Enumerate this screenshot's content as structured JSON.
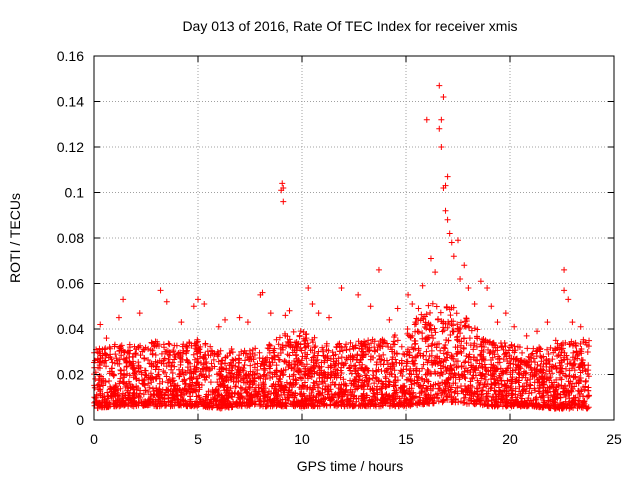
{
  "chart_data": {
    "type": "scatter",
    "title": "Day 013 of 2016, Rate Of TEC Index for receiver xmis",
    "xlabel": "GPS time / hours",
    "ylabel": "ROTI / TECUs",
    "xlim": [
      0,
      25
    ],
    "ylim": [
      0,
      0.16
    ],
    "x_ticks": [
      "0",
      "5",
      "10",
      "15",
      "20",
      "25"
    ],
    "y_ticks": [
      "0",
      "0.02",
      "0.04",
      "0.06",
      "0.08",
      "0.1",
      "0.12",
      "0.14",
      "0.16"
    ],
    "grid": true,
    "legend": "none",
    "marker": "plus",
    "series": [
      {
        "color": "#ff0000",
        "x": [
          0.1,
          0.3,
          0.6,
          1.2,
          1.4,
          2.2,
          3.2,
          3.5,
          4.2,
          4.8,
          5.0,
          5.3,
          6.0,
          6.3,
          7.0,
          7.4,
          8.0,
          8.1,
          8.5,
          9.0,
          9.05,
          9.1,
          9.1,
          9.2,
          9.4,
          10.3,
          10.5,
          10.8,
          11.3,
          11.9,
          12.7,
          13.3,
          13.7,
          14.2,
          14.6,
          15.1,
          15.3,
          15.6,
          15.8,
          16.0,
          16.2,
          16.4,
          16.6,
          16.6,
          16.7,
          16.7,
          16.8,
          16.8,
          16.9,
          16.9,
          17.0,
          17.0,
          17.1,
          17.2,
          17.3,
          17.5,
          17.6,
          17.8,
          18.0,
          18.3,
          18.6,
          18.9,
          19.1,
          19.4,
          19.8,
          20.2,
          20.8,
          21.3,
          21.8,
          22.2,
          22.6,
          22.6,
          22.8,
          23.0,
          23.4,
          23.7
        ],
        "y": [
          0.031,
          0.042,
          0.036,
          0.045,
          0.053,
          0.047,
          0.057,
          0.052,
          0.043,
          0.05,
          0.053,
          0.051,
          0.041,
          0.044,
          0.045,
          0.043,
          0.055,
          0.056,
          0.047,
          0.101,
          0.104,
          0.096,
          0.102,
          0.046,
          0.048,
          0.058,
          0.051,
          0.047,
          0.045,
          0.058,
          0.055,
          0.05,
          0.066,
          0.044,
          0.049,
          0.055,
          0.051,
          0.049,
          0.059,
          0.132,
          0.071,
          0.065,
          0.147,
          0.128,
          0.132,
          0.12,
          0.142,
          0.102,
          0.103,
          0.092,
          0.088,
          0.107,
          0.082,
          0.078,
          0.072,
          0.079,
          0.062,
          0.068,
          0.058,
          0.051,
          0.061,
          0.058,
          0.05,
          0.043,
          0.047,
          0.041,
          0.037,
          0.039,
          0.043,
          0.035,
          0.066,
          0.057,
          0.053,
          0.043,
          0.041,
          0.033
        ],
        "density": {
          "note_hours": [
            0,
            1,
            2,
            3,
            4,
            5,
            6,
            7,
            8,
            9,
            10,
            11,
            12,
            13,
            14,
            15,
            16,
            17,
            18,
            19,
            20,
            21,
            22,
            23
          ],
          "band_low": [
            0.005,
            0.006,
            0.006,
            0.006,
            0.006,
            0.006,
            0.005,
            0.006,
            0.006,
            0.006,
            0.006,
            0.006,
            0.006,
            0.006,
            0.006,
            0.006,
            0.007,
            0.008,
            0.007,
            0.006,
            0.006,
            0.006,
            0.005,
            0.005
          ],
          "band_high": [
            0.03,
            0.032,
            0.032,
            0.034,
            0.032,
            0.034,
            0.03,
            0.03,
            0.032,
            0.036,
            0.038,
            0.034,
            0.032,
            0.034,
            0.034,
            0.038,
            0.048,
            0.052,
            0.042,
            0.034,
            0.032,
            0.03,
            0.032,
            0.034
          ]
        }
      }
    ]
  }
}
